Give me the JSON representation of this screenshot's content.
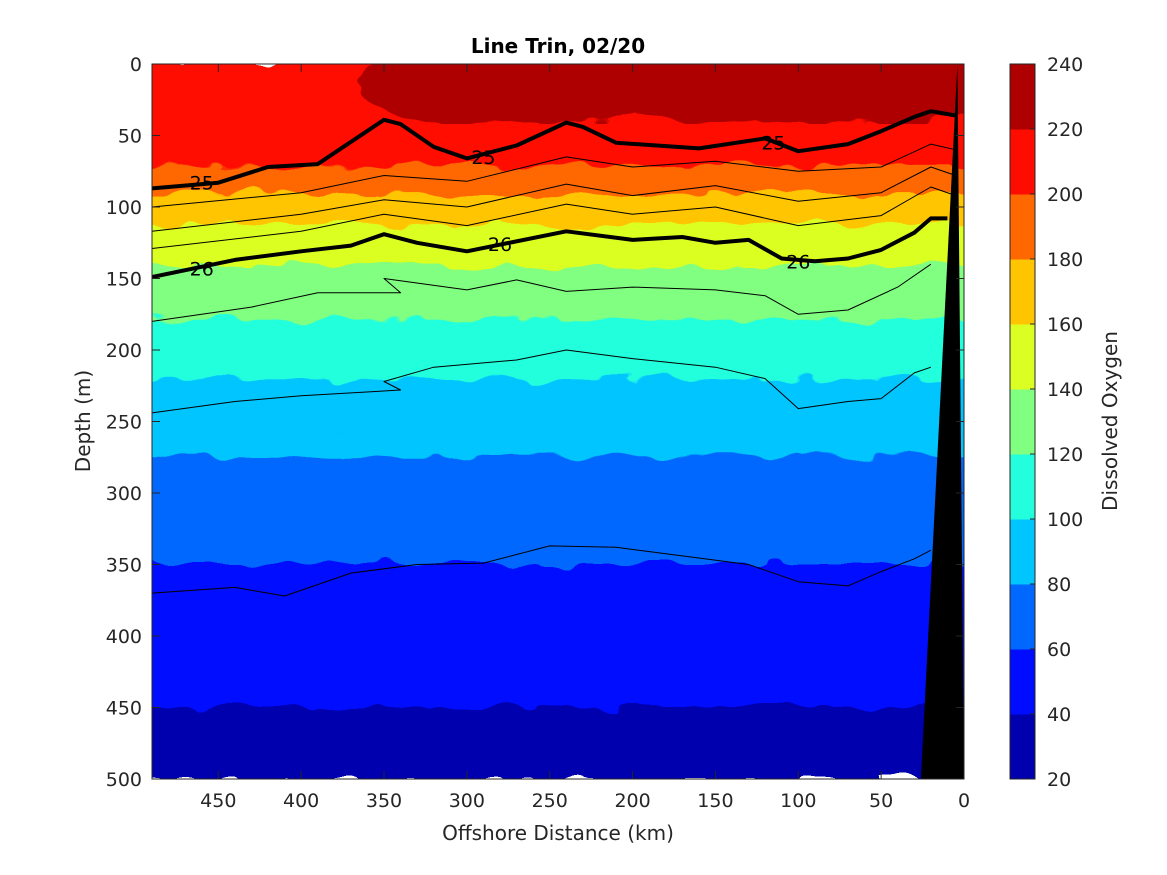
{
  "chart_data": {
    "type": "heatmap",
    "title": "Line Trin, 02/20",
    "xlabel": "Offshore Distance (km)",
    "ylabel": "Depth (m)",
    "colorbar_label": "Dissolved Oxygen",
    "xlim": [
      490,
      0
    ],
    "ylim": [
      0,
      500
    ],
    "x_reversed": true,
    "y_reversed": true,
    "x_ticks": [
      450,
      400,
      350,
      300,
      250,
      200,
      150,
      100,
      50,
      0
    ],
    "y_ticks": [
      0,
      50,
      100,
      150,
      200,
      250,
      300,
      350,
      400,
      450,
      500
    ],
    "colorbar_ticks": [
      20,
      40,
      60,
      80,
      100,
      120,
      140,
      160,
      180,
      200,
      220,
      240
    ],
    "color_range": [
      20,
      240
    ],
    "colormap": "jet",
    "oxygen_profile": [
      {
        "depth": 0,
        "value": 205
      },
      {
        "depth": 50,
        "value": 215
      },
      {
        "depth": 75,
        "value": 195
      },
      {
        "depth": 100,
        "value": 170
      },
      {
        "depth": 125,
        "value": 152
      },
      {
        "depth": 150,
        "value": 135
      },
      {
        "depth": 175,
        "value": 123
      },
      {
        "depth": 200,
        "value": 110
      },
      {
        "depth": 225,
        "value": 99
      },
      {
        "depth": 250,
        "value": 88
      },
      {
        "depth": 300,
        "value": 73
      },
      {
        "depth": 350,
        "value": 60
      },
      {
        "depth": 400,
        "value": 47
      },
      {
        "depth": 450,
        "value": 40
      },
      {
        "depth": 500,
        "value": 37
      }
    ],
    "surface_high_oxygen": [
      {
        "x": 300,
        "depth": 0,
        "value": 230
      },
      {
        "x": 250,
        "depth": 0,
        "value": 236
      },
      {
        "x": 150,
        "depth": 0,
        "value": 238
      },
      {
        "x": 100,
        "depth": 0,
        "value": 236
      },
      {
        "x": 50,
        "depth": 0,
        "value": 234
      }
    ],
    "isopycnals": [
      {
        "label": "25",
        "bold": true,
        "points": [
          [
            490,
            87
          ],
          [
            450,
            83
          ],
          [
            420,
            72
          ],
          [
            390,
            70
          ],
          [
            350,
            39
          ],
          [
            340,
            42
          ],
          [
            320,
            58
          ],
          [
            300,
            66
          ],
          [
            270,
            57
          ],
          [
            240,
            41
          ],
          [
            230,
            44
          ],
          [
            210,
            55
          ],
          [
            160,
            59
          ],
          [
            120,
            52
          ],
          [
            100,
            61
          ],
          [
            70,
            56
          ],
          [
            50,
            47
          ],
          [
            30,
            37
          ],
          [
            20,
            33
          ],
          [
            5,
            36
          ]
        ],
        "label_positions": [
          [
            460,
            83
          ],
          [
            290,
            65
          ],
          [
            115,
            55
          ]
        ]
      },
      {
        "label": "26",
        "bold": true,
        "points": [
          [
            490,
            149
          ],
          [
            440,
            137
          ],
          [
            400,
            131
          ],
          [
            370,
            127
          ],
          [
            350,
            119
          ],
          [
            330,
            125
          ],
          [
            300,
            131
          ],
          [
            240,
            117
          ],
          [
            200,
            123
          ],
          [
            170,
            121
          ],
          [
            150,
            125
          ],
          [
            130,
            123
          ],
          [
            110,
            136
          ],
          [
            90,
            138
          ],
          [
            70,
            136
          ],
          [
            50,
            130
          ],
          [
            30,
            118
          ],
          [
            20,
            108
          ],
          [
            10,
            108
          ]
        ],
        "label_positions": [
          [
            460,
            143
          ],
          [
            280,
            126
          ],
          [
            100,
            138
          ]
        ]
      },
      {
        "label": "",
        "bold": false,
        "points": [
          [
            490,
            100
          ],
          [
            400,
            90
          ],
          [
            350,
            78
          ],
          [
            300,
            82
          ],
          [
            240,
            65
          ],
          [
            200,
            72
          ],
          [
            150,
            68
          ],
          [
            100,
            75
          ],
          [
            50,
            72
          ],
          [
            20,
            56
          ],
          [
            5,
            60
          ]
        ]
      },
      {
        "label": "",
        "bold": false,
        "points": [
          [
            490,
            117
          ],
          [
            400,
            105
          ],
          [
            350,
            95
          ],
          [
            300,
            100
          ],
          [
            240,
            84
          ],
          [
            200,
            92
          ],
          [
            150,
            85
          ],
          [
            100,
            96
          ],
          [
            50,
            90
          ],
          [
            20,
            72
          ],
          [
            5,
            78
          ]
        ]
      },
      {
        "label": "",
        "bold": false,
        "points": [
          [
            490,
            129
          ],
          [
            400,
            117
          ],
          [
            350,
            105
          ],
          [
            300,
            113
          ],
          [
            240,
            98
          ],
          [
            200,
            105
          ],
          [
            150,
            100
          ],
          [
            100,
            113
          ],
          [
            50,
            106
          ],
          [
            20,
            86
          ],
          [
            5,
            92
          ]
        ]
      },
      {
        "label": "",
        "bold": false,
        "points": [
          [
            490,
            180
          ],
          [
            430,
            170
          ],
          [
            390,
            160
          ],
          [
            340,
            160
          ],
          [
            350,
            150
          ],
          [
            300,
            158
          ],
          [
            270,
            151
          ],
          [
            240,
            159
          ],
          [
            200,
            156
          ],
          [
            150,
            158
          ],
          [
            120,
            162
          ],
          [
            100,
            175
          ],
          [
            70,
            172
          ],
          [
            40,
            156
          ],
          [
            20,
            140
          ]
        ]
      },
      {
        "label": "",
        "bold": false,
        "points": [
          [
            490,
            244
          ],
          [
            440,
            236
          ],
          [
            400,
            232
          ],
          [
            340,
            228
          ],
          [
            350,
            222
          ],
          [
            320,
            212
          ],
          [
            270,
            207
          ],
          [
            240,
            200
          ],
          [
            200,
            206
          ],
          [
            150,
            212
          ],
          [
            120,
            220
          ],
          [
            100,
            241
          ],
          [
            70,
            236
          ],
          [
            50,
            234
          ],
          [
            30,
            216
          ],
          [
            20,
            212
          ]
        ]
      },
      {
        "label": "",
        "bold": false,
        "points": [
          [
            490,
            370
          ],
          [
            440,
            366
          ],
          [
            410,
            372
          ],
          [
            370,
            356
          ],
          [
            330,
            350
          ],
          [
            290,
            349
          ],
          [
            250,
            337
          ],
          [
            210,
            338
          ],
          [
            170,
            344
          ],
          [
            130,
            350
          ],
          [
            100,
            362
          ],
          [
            70,
            365
          ],
          [
            50,
            355
          ],
          [
            30,
            346
          ],
          [
            20,
            340
          ]
        ]
      }
    ],
    "shelf_mask": [
      [
        4,
        0
      ],
      [
        26,
        500
      ],
      [
        0,
        500
      ]
    ]
  },
  "axes_labels": {
    "title": "Line Trin, 02/20",
    "xlabel": "Offshore Distance (km)",
    "ylabel": "Depth (m)",
    "colorbar_label": "Dissolved Oxygen"
  }
}
